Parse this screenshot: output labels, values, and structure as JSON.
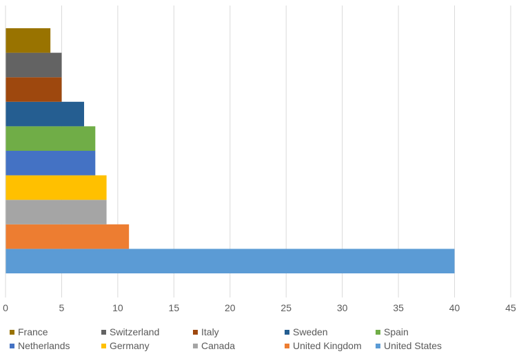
{
  "chart_data": {
    "type": "bar",
    "orientation": "horizontal",
    "categories": [
      "United States",
      "United Kingdom",
      "Canada",
      "Germany",
      "Netherlands",
      "Spain",
      "Sweden",
      "Italy",
      "Switzerland",
      "France"
    ],
    "values": [
      40,
      11,
      9,
      9,
      8,
      8,
      7,
      5,
      5,
      4
    ],
    "colors": [
      "#5b9bd5",
      "#ed7d31",
      "#a5a5a5",
      "#ffc000",
      "#4472c4",
      "#70ad47",
      "#255e91",
      "#9e480e",
      "#636363",
      "#997300"
    ],
    "xlim": [
      0,
      45
    ],
    "xticks": [
      0,
      5,
      10,
      15,
      20,
      25,
      30,
      35,
      40,
      45
    ],
    "grid": true,
    "legend_position": "bottom",
    "title": "",
    "xlabel": "",
    "ylabel": ""
  },
  "legend": [
    {
      "label": "France",
      "color": "#997300"
    },
    {
      "label": "Switzerland",
      "color": "#636363"
    },
    {
      "label": "Italy",
      "color": "#9e480e"
    },
    {
      "label": "Sweden",
      "color": "#255e91"
    },
    {
      "label": "Spain",
      "color": "#70ad47"
    },
    {
      "label": "Netherlands",
      "color": "#4472c4"
    },
    {
      "label": "Germany",
      "color": "#ffc000"
    },
    {
      "label": "Canada",
      "color": "#a5a5a5"
    },
    {
      "label": "United Kingdom",
      "color": "#ed7d31"
    },
    {
      "label": "United States",
      "color": "#5b9bd5"
    }
  ]
}
